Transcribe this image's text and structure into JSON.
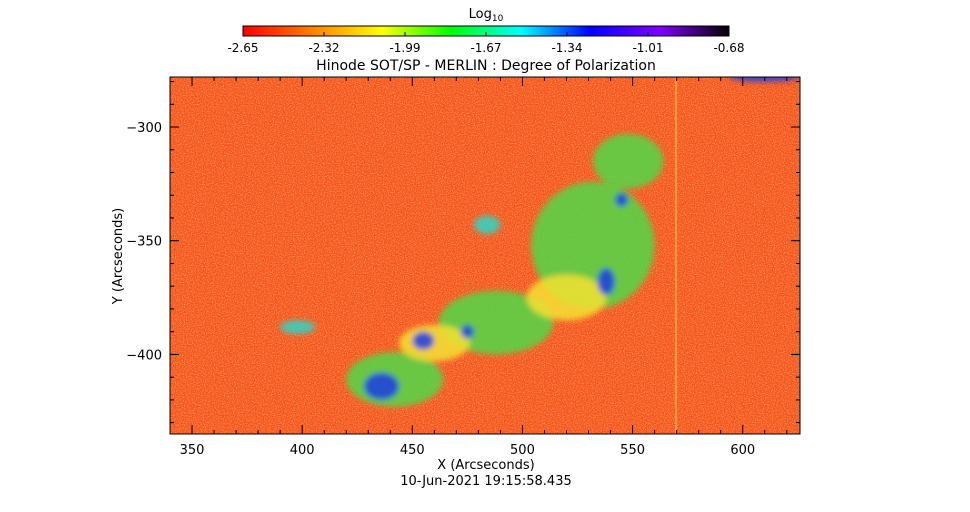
{
  "colorbar": {
    "label": "Log",
    "label_sub": "10",
    "ticks": [
      "-2.65",
      "-2.32",
      "-1.99",
      "-1.67",
      "-1.34",
      "-1.01",
      "-0.68"
    ],
    "stops": [
      "#ff0000",
      "#ff8000",
      "#ffff00",
      "#00ff00",
      "#00ffff",
      "#0000ff",
      "#8000ff",
      "#000000"
    ]
  },
  "title": "Hinode SOT/SP - MERLIN : Degree of Polarization",
  "timestamp": "10-Jun-2021 19:15:58.435",
  "chart_data": {
    "type": "heatmap",
    "title": "Hinode SOT/SP - MERLIN : Degree of Polarization",
    "xlabel": "X (Arcseconds)",
    "ylabel": "Y (Arcseconds)",
    "xlim": [
      340,
      626
    ],
    "ylim": [
      -435,
      -278
    ],
    "xticks": [
      350,
      400,
      450,
      500,
      550,
      600
    ],
    "yticks": [
      -300,
      -350,
      -400
    ],
    "value_range_log10": [
      -2.65,
      -0.68
    ],
    "background_color": "#f4501e",
    "regions": [
      {
        "x": 442,
        "y": -411,
        "rx": 22,
        "ry": 12,
        "level": "green"
      },
      {
        "x": 488,
        "y": -386,
        "rx": 26,
        "ry": 14,
        "level": "green"
      },
      {
        "x": 532,
        "y": -352,
        "rx": 28,
        "ry": 28,
        "level": "green"
      },
      {
        "x": 548,
        "y": -315,
        "rx": 16,
        "ry": 12,
        "level": "green"
      },
      {
        "x": 460,
        "y": -395,
        "rx": 16,
        "ry": 8,
        "level": "yellow"
      },
      {
        "x": 520,
        "y": -375,
        "rx": 18,
        "ry": 10,
        "level": "yellow"
      },
      {
        "x": 484,
        "y": -343,
        "rx": 6,
        "ry": 4,
        "level": "cyan"
      },
      {
        "x": 398,
        "y": -388,
        "rx": 8,
        "ry": 3,
        "level": "cyan"
      },
      {
        "x": 436,
        "y": -414,
        "rx": 8,
        "ry": 6,
        "level": "blue"
      },
      {
        "x": 455,
        "y": -394,
        "rx": 5,
        "ry": 4,
        "level": "blue"
      },
      {
        "x": 475,
        "y": -390,
        "rx": 3,
        "ry": 3,
        "level": "blue"
      },
      {
        "x": 538,
        "y": -368,
        "rx": 4,
        "ry": 6,
        "level": "blue"
      },
      {
        "x": 545,
        "y": -332,
        "rx": 3,
        "ry": 3,
        "level": "blue"
      },
      {
        "x": 610,
        "y": -278,
        "rx": 16,
        "ry": 2,
        "level": "blue"
      }
    ]
  }
}
